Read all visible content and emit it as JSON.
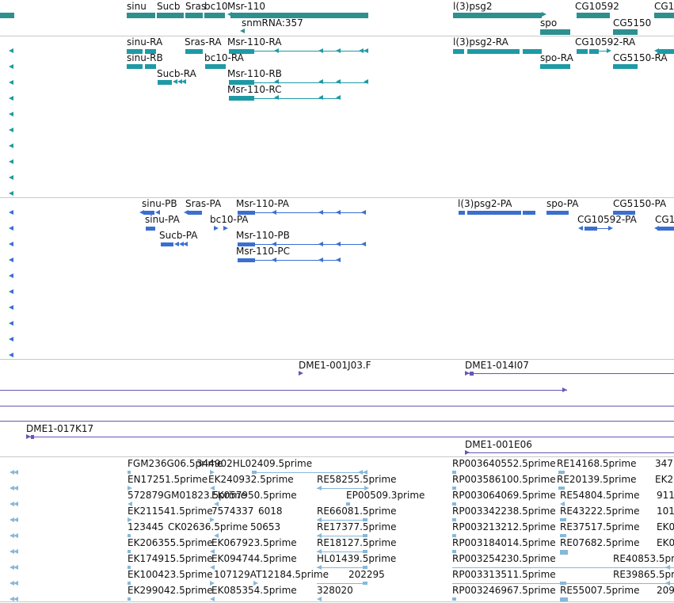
{
  "colors": {
    "gene": "#2e8f8f",
    "transcript_a": "#1e9aa5",
    "transcript_b": "#3a6fd0",
    "clone": "#6a55b5",
    "est": "#87b8d8",
    "divider": "#c9c9c9"
  },
  "tracks": {
    "genes": {
      "labels": [
        "sinu",
        "Sucb",
        "Sras",
        "bc10",
        "Msr-110",
        "snmRNA:357",
        "l(3)psg2",
        "spo",
        "CG10592",
        "CG5150",
        "CG1"
      ]
    },
    "transcripts_a": {
      "labels": [
        "sinu-RA",
        "sinu-RB",
        "Sras-RA",
        "bc10-RA",
        "Sucb-RA",
        "Msr-110-RA",
        "Msr-110-RB",
        "Msr-110-RC",
        "l(3)psg2-RA",
        "spo-RA",
        "CG10592-RA",
        "CG5150-RA"
      ]
    },
    "transcripts_b": {
      "labels": [
        "sinu-PB",
        "sinu-PA",
        "Sras-PA",
        "bc10-PA",
        "Sucb-PA",
        "Msr-110-PA",
        "Msr-110-PB",
        "Msr-110-PC",
        "l(3)psg2-PA",
        "spo-PA",
        "CG10592-PA",
        "CG5150-PA",
        "CG1"
      ]
    },
    "clones": {
      "labels": [
        "DME1-001J03.F",
        "DME1-014I07",
        "DME1-017K17",
        "DME1-001E06"
      ]
    },
    "ests": {
      "col1": [
        "FGM236G06.5prime",
        "EN17251.5prime",
        "572879GM01823.5prime",
        "EK211541.5prime",
        "123445",
        "EK206355.5prime",
        "EK174915.5prime",
        "EK100423.5prime",
        "EK299042.5prime"
      ],
      "col2": [
        "344902HL02409.5prime",
        "EK240932.5prime",
        "EK057950.5prime",
        "7574337",
        "CK02636.5prime",
        "EK067923.5prime",
        "EK094744.5prime",
        "107129AT12184.5prime",
        "EK085354.5prime"
      ],
      "col3": [
        "RE58255.5prime",
        "EP00509.3prime",
        "6018",
        "RE66081.5prime",
        "50653",
        "RE17377.5prime",
        "RE18127.5prime",
        "HL01439.5prime",
        "202295",
        "328020"
      ],
      "col4": [
        "RP003640552.5prime",
        "RP003586100.5prime",
        "RP003064069.5prime",
        "RP003342238.5prime",
        "RP003213212.5prime",
        "RP003184014.5prime",
        "RP003254230.5prime",
        "RP003313511.5prime",
        "RP003246967.5prime"
      ],
      "col5": [
        "RE14168.5prime",
        "RE20139.5prime",
        "RE54804.5prime",
        "RE43222.5prime",
        "RE37517.5prime",
        "RE07682.5prime",
        "RE40853.5prime",
        "RE39865.5prime",
        "RE55007.5prime"
      ],
      "col6": [
        "347",
        "EK2",
        "911",
        "101",
        "EK0",
        "EK0",
        "209"
      ]
    }
  }
}
